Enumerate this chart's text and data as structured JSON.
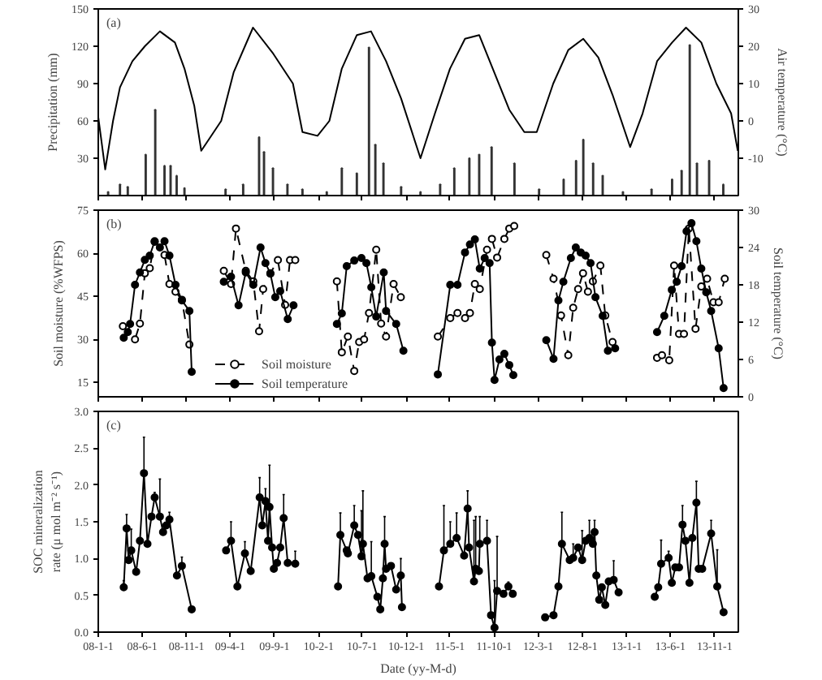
{
  "chart_data": [
    {
      "type": "bar",
      "xlim": [
        "2008-01-01",
        "2014-01-22"
      ],
      "ylim": [
        0,
        150
      ],
      "yticks": [
        30,
        60,
        90,
        120,
        150
      ],
      "y2lim": [
        -20,
        30
      ],
      "y2ticks": [
        -10,
        0,
        10,
        20,
        30
      ],
      "ylabel": "Precipitation (mm)",
      "y2label": "Air temperature (°C)",
      "annotations": [
        "(a)"
      ],
      "tick_labels": "y",
      "xticks": [
        {
          "value": "2008-01-01",
          "label": "08-1-1"
        },
        {
          "value": "2008-06-01",
          "label": "08-6-1"
        },
        {
          "value": "2008-11-01",
          "label": "08-11-1"
        },
        {
          "value": "2009-04-01",
          "label": "09-4-1"
        },
        {
          "value": "2009-09-01",
          "label": "09-9-1"
        },
        {
          "value": "2010-02-01",
          "label": "10-2-1"
        },
        {
          "value": "2010-07-01",
          "label": "10-7-1"
        },
        {
          "value": "2010-12-01",
          "label": "10-12-1"
        },
        {
          "value": "2011-05-01",
          "label": "11-5-1"
        },
        {
          "value": "2011-10-01",
          "label": "11-10-1"
        },
        {
          "value": "2012-03-01",
          "label": "12-3-1"
        },
        {
          "value": "2012-08-01",
          "label": "12-8-1"
        },
        {
          "value": "2013-01-01",
          "label": "13-1-1"
        },
        {
          "value": "2013-06-01",
          "label": "13-6-1"
        },
        {
          "value": "2013-11-01",
          "label": "13-11-1"
        }
      ],
      "series": [
        {
          "type": "bar",
          "color": "#333333",
          "x": [
            "2008-02-04",
            "2008-03-16",
            "2008-04-12",
            "2008-06-13",
            "2008-07-16",
            "2008-08-17",
            "2008-09-07",
            "2008-09-28",
            "2008-10-25",
            "2009-03-16",
            "2009-05-16",
            "2009-07-10",
            "2009-07-27",
            "2009-08-27",
            "2009-10-16",
            "2009-12-07",
            "2010-03-01",
            "2010-04-22",
            "2010-06-13",
            "2010-07-25",
            "2010-08-16",
            "2010-09-13",
            "2010-11-13",
            "2011-01-19",
            "2011-03-28",
            "2011-05-16",
            "2011-07-07",
            "2011-08-10",
            "2011-09-22",
            "2011-12-10",
            "2012-03-04",
            "2012-05-28",
            "2012-07-10",
            "2012-08-04",
            "2012-09-07",
            "2012-10-10",
            "2012-12-19",
            "2013-03-28",
            "2013-06-07",
            "2013-07-10",
            "2013-08-07",
            "2013-09-01",
            "2013-10-13",
            "2013-12-01"
          ],
          "values": [
            3,
            9,
            7,
            33,
            69,
            24,
            24,
            16,
            6,
            5,
            9,
            47,
            35,
            22,
            9,
            5,
            3,
            22,
            18,
            119,
            41,
            26,
            7,
            3,
            9,
            22,
            30,
            33,
            39,
            26,
            5,
            13,
            28,
            45,
            26,
            16,
            3,
            5,
            13,
            20,
            121,
            26,
            28,
            9
          ]
        },
        {
          "type": "line",
          "axis": "y2",
          "color": "#000000",
          "x": [
            "2008-01-01",
            "2008-01-25",
            "2008-02-21",
            "2008-03-16",
            "2008-04-28",
            "2008-06-10",
            "2008-08-01",
            "2008-09-22",
            "2008-10-25",
            "2008-11-28",
            "2008-12-22",
            "2009-03-01",
            "2009-04-13",
            "2009-06-19",
            "2009-08-28",
            "2009-11-04",
            "2009-12-07",
            "2010-01-28",
            "2010-03-10",
            "2010-04-22",
            "2010-06-13",
            "2010-08-01",
            "2010-09-22",
            "2010-11-13",
            "2011-01-19",
            "2011-03-10",
            "2011-05-01",
            "2011-06-22",
            "2011-08-10",
            "2011-10-01",
            "2011-11-22",
            "2012-01-13",
            "2012-02-25",
            "2012-04-22",
            "2012-06-13",
            "2012-08-04",
            "2012-09-25",
            "2012-11-13",
            "2013-01-13",
            "2013-02-25",
            "2013-04-16",
            "2013-06-07",
            "2013-07-25",
            "2013-09-16",
            "2013-11-07",
            "2013-12-28",
            "2014-01-20"
          ],
          "values": [
            1,
            -13,
            0,
            9,
            16,
            20,
            24,
            21,
            14,
            4,
            -8,
            0,
            13,
            25,
            18,
            10,
            -3,
            -4,
            0,
            14,
            23,
            24,
            16,
            6,
            -10,
            2,
            14,
            22,
            23,
            13,
            3,
            -3,
            -3,
            10,
            19,
            22,
            17,
            7,
            -7,
            2,
            16,
            21,
            25,
            21,
            10,
            2,
            -8
          ]
        }
      ]
    },
    {
      "type": "line",
      "xlim": [
        "2008-01-01",
        "2014-01-22"
      ],
      "ylim": [
        10,
        75
      ],
      "yticks": [
        15,
        30,
        45,
        60,
        75
      ],
      "y2lim": [
        0,
        30
      ],
      "y2ticks": [
        0,
        6,
        12,
        18,
        24,
        30
      ],
      "ylabel": "Soil moisture (%WFPS)",
      "y2label": "Soil temperature (°C)",
      "annotations": [
        "(b)"
      ],
      "tick_labels": "y",
      "legend": "bottom left",
      "marker": "circle",
      "xticks": [
        {
          "value": "2008-01-01",
          "label": "08-1-1"
        },
        {
          "value": "2008-06-01",
          "label": "08-6-1"
        },
        {
          "value": "2008-11-01",
          "label": "08-11-1"
        },
        {
          "value": "2009-04-01",
          "label": "09-4-1"
        },
        {
          "value": "2009-09-01",
          "label": "09-9-1"
        },
        {
          "value": "2010-02-01",
          "label": "10-2-1"
        },
        {
          "value": "2010-07-01",
          "label": "10-7-1"
        },
        {
          "value": "2010-12-01",
          "label": "10-12-1"
        },
        {
          "value": "2011-05-01",
          "label": "11-5-1"
        },
        {
          "value": "2011-10-01",
          "label": "11-10-1"
        },
        {
          "value": "2012-03-01",
          "label": "12-3-1"
        },
        {
          "value": "2012-08-01",
          "label": "12-8-1"
        },
        {
          "value": "2013-01-01",
          "label": "13-1-1"
        },
        {
          "value": "2013-06-01",
          "label": "13-6-1"
        },
        {
          "value": "2013-11-01",
          "label": "13-11-1"
        }
      ],
      "series": [
        {
          "name": "Soil moisture",
          "color": "#000000",
          "line_style": "dashed",
          "x": [
            "2008-03-26",
            "2008-05-07",
            "2008-05-24",
            "2008-06-10",
            "2008-06-27",
            "2008-07-14",
            "2008-08-17",
            "2008-09-03",
            "2008-09-24",
            "2008-10-16",
            "2008-11-11",
            "2008-12-31",
            "2009-03-10",
            "2009-04-04",
            "2009-04-21",
            "2009-05-25",
            "2009-06-20",
            "2009-07-10",
            "2009-07-24",
            "2009-08-18",
            "2009-09-13",
            "2009-10-08",
            "2009-10-25",
            "2009-11-12",
            "2009-12-31",
            "2010-04-05",
            "2010-04-22",
            "2010-05-13",
            "2010-06-04",
            "2010-06-21",
            "2010-07-08",
            "2010-07-25",
            "2010-08-19",
            "2010-09-05",
            "2010-09-22",
            "2010-10-18",
            "2010-11-12",
            "2010-12-31",
            "2011-03-20",
            "2011-05-02",
            "2011-05-27",
            "2011-06-22",
            "2011-07-09",
            "2011-07-26",
            "2011-08-12",
            "2011-09-06",
            "2011-09-23",
            "2011-10-11",
            "2011-11-05",
            "2011-11-22",
            "2011-12-09",
            "2011-12-31",
            "2012-03-29",
            "2012-04-23",
            "2012-05-19",
            "2012-06-13",
            "2012-06-30",
            "2012-07-17",
            "2012-08-03",
            "2012-08-20",
            "2012-09-06",
            "2012-10-02",
            "2012-10-19",
            "2012-11-13",
            "2012-12-31",
            "2013-04-16",
            "2013-05-03",
            "2013-05-28",
            "2013-06-14",
            "2013-07-01",
            "2013-07-18",
            "2013-08-04",
            "2013-08-27",
            "2013-09-16",
            "2013-10-06",
            "2013-10-28",
            "2013-11-15",
            "2013-12-06"
          ],
          "values": [
            34.6,
            30,
            35.5,
            53,
            54.8,
            64,
            59.4,
            49.3,
            46.6,
            43.8,
            28.2,
            null,
            53.9,
            49.3,
            68.6,
            53.9,
            50.2,
            32.8,
            47.5,
            53,
            57.6,
            42,
            57.6,
            57.6,
            null,
            50.2,
            25.5,
            31,
            19,
            29.1,
            30,
            39.2,
            61.2,
            35.5,
            31,
            49.3,
            44.7,
            null,
            31,
            37.4,
            39.2,
            37.4,
            39.2,
            49.3,
            47.5,
            61.2,
            65,
            58.5,
            65,
            68.6,
            69.5,
            null,
            59.4,
            51.1,
            38.3,
            24.5,
            41,
            47.5,
            53,
            46.6,
            50.2,
            55.7,
            38.3,
            29.1,
            null,
            23.6,
            24.5,
            22.7,
            55.7,
            31.9,
            31.9,
            68.6,
            33.7,
            48.4,
            51.1,
            42.9,
            42.9,
            51.1
          ]
        },
        {
          "name": "Soil temperature",
          "color": "#000000",
          "axis": "y2",
          "line_style": "solid",
          "x": [
            "2008-03-29",
            "2008-04-12",
            "2008-04-20",
            "2008-05-07",
            "2008-05-24",
            "2008-06-10",
            "2008-06-27",
            "2008-07-14",
            "2008-08-01",
            "2008-08-17",
            "2008-09-03",
            "2008-09-24",
            "2008-10-16",
            "2008-11-11",
            "2008-11-19",
            "2008-12-31",
            "2009-03-10",
            "2009-04-04",
            "2009-04-30",
            "2009-05-25",
            "2009-06-20",
            "2009-07-15",
            "2009-08-01",
            "2009-08-18",
            "2009-09-04",
            "2009-09-21",
            "2009-10-17",
            "2009-11-06",
            "2009-12-31",
            "2010-04-05",
            "2010-04-22",
            "2010-05-09",
            "2010-06-04",
            "2010-06-29",
            "2010-07-16",
            "2010-08-02",
            "2010-08-19",
            "2010-09-14",
            "2010-09-22",
            "2010-10-27",
            "2010-11-21",
            "2010-12-31",
            "2011-03-20",
            "2011-05-02",
            "2011-05-27",
            "2011-06-22",
            "2011-07-09",
            "2011-07-26",
            "2011-08-12",
            "2011-08-29",
            "2011-09-15",
            "2011-09-23",
            "2011-10-02",
            "2011-10-19",
            "2011-11-05",
            "2011-11-22",
            "2011-12-06",
            "2011-12-31",
            "2012-03-29",
            "2012-04-23",
            "2012-05-10",
            "2012-05-27",
            "2012-06-22",
            "2012-07-09",
            "2012-07-26",
            "2012-08-12",
            "2012-08-29",
            "2012-09-15",
            "2012-10-10",
            "2012-10-28",
            "2012-11-22",
            "2012-12-31",
            "2013-04-16",
            "2013-05-11",
            "2013-06-06",
            "2013-06-23",
            "2013-07-10",
            "2013-07-27",
            "2013-08-13",
            "2013-08-30",
            "2013-09-16",
            "2013-10-03",
            "2013-10-20",
            "2013-11-15",
            "2013-12-02"
          ],
          "values": [
            9.5,
            10.4,
            11.7,
            18,
            20,
            22,
            22.7,
            25,
            24,
            25,
            22.7,
            18,
            15.5,
            13.8,
            4,
            null,
            18.5,
            19.3,
            14.7,
            20,
            18,
            24,
            21.5,
            19.8,
            16,
            17,
            12.5,
            14.7,
            null,
            11.7,
            13.4,
            21,
            21.9,
            22.3,
            21.5,
            17.6,
            12.9,
            20,
            13.8,
            11.7,
            7.4,
            null,
            3.6,
            18,
            18,
            23.2,
            24.5,
            25.3,
            20.6,
            22.3,
            21.5,
            8.7,
            2.7,
            6,
            6.9,
            5.1,
            3.5,
            null,
            9.1,
            6.1,
            15.5,
            18.5,
            22.3,
            24,
            23.2,
            22.7,
            21.5,
            16,
            13,
            7.4,
            7.8,
            null,
            10.4,
            13,
            17.2,
            18.5,
            21,
            26.6,
            27.9,
            25,
            20.6,
            16.8,
            13.8,
            7.8,
            1.4
          ]
        }
      ]
    },
    {
      "type": "line",
      "xlim": [
        "2008-01-01",
        "2014-01-22"
      ],
      "ylim": [
        0,
        3
      ],
      "yticks": [
        {
          "value": 0,
          "label": "0.0"
        },
        {
          "value": 0.5,
          "label": "0.5"
        },
        {
          "value": 1,
          "label": "1.0"
        },
        {
          "value": 1.5,
          "label": "1.5"
        },
        {
          "value": 2,
          "label": "2.0"
        },
        {
          "value": 2.5,
          "label": "2.5"
        },
        {
          "value": 3,
          "label": "3.0"
        }
      ],
      "ylabel": "SOC mineralization rate (μ mol m⁻² s⁻¹)",
      "xlabel": "Date (yy-M-d)",
      "annotations": [
        "(c)"
      ],
      "marker": "circle",
      "xticks": [
        {
          "value": "2008-01-01",
          "label": "08-1-1"
        },
        {
          "value": "2008-06-01",
          "label": "08-6-1"
        },
        {
          "value": "2008-11-01",
          "label": "08-11-1"
        },
        {
          "value": "2009-04-01",
          "label": "09-4-1"
        },
        {
          "value": "2009-09-01",
          "label": "09-9-1"
        },
        {
          "value": "2010-02-01",
          "label": "10-2-1"
        },
        {
          "value": "2010-07-01",
          "label": "10-7-1"
        },
        {
          "value": "2010-12-01",
          "label": "10-12-1"
        },
        {
          "value": "2011-05-01",
          "label": "11-5-1"
        },
        {
          "value": "2011-10-01",
          "label": "11-10-1"
        },
        {
          "value": "2012-03-01",
          "label": "12-3-1"
        },
        {
          "value": "2012-08-01",
          "label": "12-8-1"
        },
        {
          "value": "2013-01-01",
          "label": "13-1-1"
        },
        {
          "value": "2013-06-01",
          "label": "13-6-1"
        },
        {
          "value": "2013-11-01",
          "label": "13-11-1"
        }
      ],
      "series": [
        {
          "color": "#000000",
          "x": [
            "2008-03-29",
            "2008-04-08",
            "2008-04-15",
            "2008-04-24",
            "2008-05-11",
            "2008-05-24",
            "2008-06-07",
            "2008-06-19",
            "2008-07-03",
            "2008-07-14",
            "2008-08-01",
            "2008-08-12",
            "2008-08-23",
            "2008-09-03",
            "2008-09-29",
            "2008-10-16",
            "2008-11-19",
            "2008-12-31",
            "2009-03-18",
            "2009-04-04",
            "2009-04-26",
            "2009-05-22",
            "2009-06-11",
            "2009-07-12",
            "2009-07-21",
            "2009-08-01",
            "2009-08-10",
            "2009-08-15",
            "2009-08-24",
            "2009-08-30",
            "2009-09-10",
            "2009-09-21",
            "2009-10-03",
            "2009-10-17",
            "2009-11-12",
            "2009-12-31",
            "2010-04-09",
            "2010-04-17",
            "2010-05-09",
            "2010-05-13",
            "2010-06-04",
            "2010-06-17",
            "2010-06-29",
            "2010-07-04",
            "2010-07-20",
            "2010-08-02",
            "2010-08-23",
            "2010-09-02",
            "2010-09-11",
            "2010-09-17",
            "2010-09-22",
            "2010-10-09",
            "2010-10-27",
            "2010-11-12",
            "2010-11-16",
            "2010-12-31",
            "2011-03-24",
            "2011-04-10",
            "2011-05-02",
            "2011-05-24",
            "2011-06-19",
            "2011-07-01",
            "2011-07-06",
            "2011-07-23",
            "2011-07-29",
            "2011-08-09",
            "2011-08-12",
            "2011-09-06",
            "2011-09-20",
            "2011-10-02",
            "2011-10-11",
            "2011-11-02",
            "2011-11-19",
            "2011-12-04",
            "2011-12-31",
            "2012-03-25",
            "2012-04-23",
            "2012-05-10",
            "2012-05-22",
            "2012-06-18",
            "2012-06-30",
            "2012-07-17",
            "2012-07-31",
            "2012-08-12",
            "2012-08-25",
            "2012-09-06",
            "2012-09-12",
            "2012-09-18",
            "2012-09-28",
            "2012-10-07",
            "2012-10-19",
            "2012-10-31",
            "2012-11-17",
            "2012-12-04",
            "2012-12-31",
            "2013-04-08",
            "2013-04-20",
            "2013-04-30",
            "2013-05-26",
            "2013-06-06",
            "2013-06-18",
            "2013-07-01",
            "2013-07-13",
            "2013-07-23",
            "2013-08-06",
            "2013-08-16",
            "2013-08-30",
            "2013-09-07",
            "2013-09-19",
            "2013-10-20",
            "2013-11-10",
            "2013-12-02"
          ],
          "values": [
            0.61,
            1.41,
            0.98,
            1.11,
            0.82,
            1.24,
            2.16,
            1.2,
            1.57,
            1.83,
            1.57,
            1.36,
            1.45,
            1.53,
            0.77,
            0.9,
            0.31,
            null,
            1.11,
            1.24,
            0.62,
            1.07,
            0.83,
            1.83,
            1.45,
            1.78,
            1.24,
            1.7,
            1.15,
            0.86,
            0.94,
            1.15,
            1.55,
            0.94,
            0.93,
            null,
            0.62,
            1.32,
            1.11,
            1.07,
            1.45,
            1.32,
            1.03,
            1.2,
            0.73,
            0.76,
            0.48,
            0.31,
            0.73,
            1.2,
            0.86,
            0.9,
            0.58,
            0.77,
            0.34,
            null,
            0.62,
            1.11,
            1.2,
            1.28,
            1.04,
            1.68,
            1.15,
            0.69,
            0.86,
            0.83,
            1.2,
            1.24,
            0.23,
            0.06,
            0.56,
            0.52,
            0.62,
            0.52,
            null,
            0.2,
            0.23,
            0.62,
            1.2,
            0.98,
            1.01,
            1.15,
            0.98,
            1.24,
            1.28,
            1.2,
            1.36,
            0.77,
            0.44,
            0.61,
            0.37,
            0.69,
            0.71,
            0.54,
            null,
            0.48,
            0.61,
            0.93,
            1.01,
            0.67,
            0.88,
            0.88,
            1.46,
            1.24,
            0.67,
            1.28,
            1.76,
            0.86,
            0.86,
            1.34,
            0.62,
            0.27
          ],
          "errors": [
            [
              0.61,
              0.7
            ],
            [
              1.41,
              1.6
            ],
            null,
            [
              1.11,
              1.4
            ],
            null,
            null,
            [
              2.16,
              2.65
            ],
            null,
            null,
            [
              1.83,
              1.9
            ],
            [
              1.57,
              2.08
            ],
            null,
            null,
            [
              1.53,
              1.63
            ],
            null,
            [
              0.9,
              1.02
            ],
            null,
            null,
            null,
            [
              1.24,
              1.5
            ],
            null,
            [
              1.07,
              1.23
            ],
            null,
            [
              1.83,
              2.1
            ],
            null,
            [
              1.78,
              1.95
            ],
            null,
            [
              1.7,
              2.27
            ],
            null,
            null,
            null,
            null,
            [
              1.55,
              1.87
            ],
            null,
            [
              0.93,
              1.1
            ],
            null,
            null,
            [
              1.32,
              1.62
            ],
            null,
            null,
            [
              1.45,
              1.72
            ],
            null,
            [
              1.03,
              1.65
            ],
            [
              1.2,
              1.92
            ],
            null,
            [
              0.76,
              1.23
            ],
            null,
            null,
            null,
            [
              1.2,
              1.57
            ],
            null,
            null,
            null,
            [
              0.77,
              1.0
            ],
            null,
            null,
            null,
            [
              1.11,
              1.72
            ],
            [
              1.2,
              1.5
            ],
            [
              1.28,
              1.62
            ],
            null,
            [
              1.68,
              1.92
            ],
            null,
            [
              0.69,
              1.52
            ],
            [
              0.86,
              1.57
            ],
            null,
            [
              1.2,
              1.57
            ],
            [
              1.24,
              1.52
            ],
            null,
            [
              0.06,
              0.7
            ],
            [
              0.56,
              1.3
            ],
            null,
            [
              0.62,
              0.68
            ],
            null,
            null,
            null,
            null,
            null,
            [
              1.2,
              1.63
            ],
            null,
            [
              1.01,
              1.2
            ],
            null,
            [
              0.98,
              1.38
            ],
            null,
            [
              1.28,
              1.52
            ],
            null,
            [
              1.36,
              1.52
            ],
            null,
            null,
            null,
            null,
            null,
            [
              0.71,
              0.97
            ],
            null,
            null,
            null,
            null,
            [
              0.93,
              1.25
            ],
            [
              1.01,
              1.1
            ],
            null,
            null,
            null,
            [
              1.46,
              1.72
            ],
            null,
            null,
            null,
            [
              1.76,
              2.05
            ],
            null,
            null,
            [
              1.34,
              1.52
            ],
            [
              0.62,
              1.12
            ],
            null
          ]
        }
      ]
    }
  ]
}
